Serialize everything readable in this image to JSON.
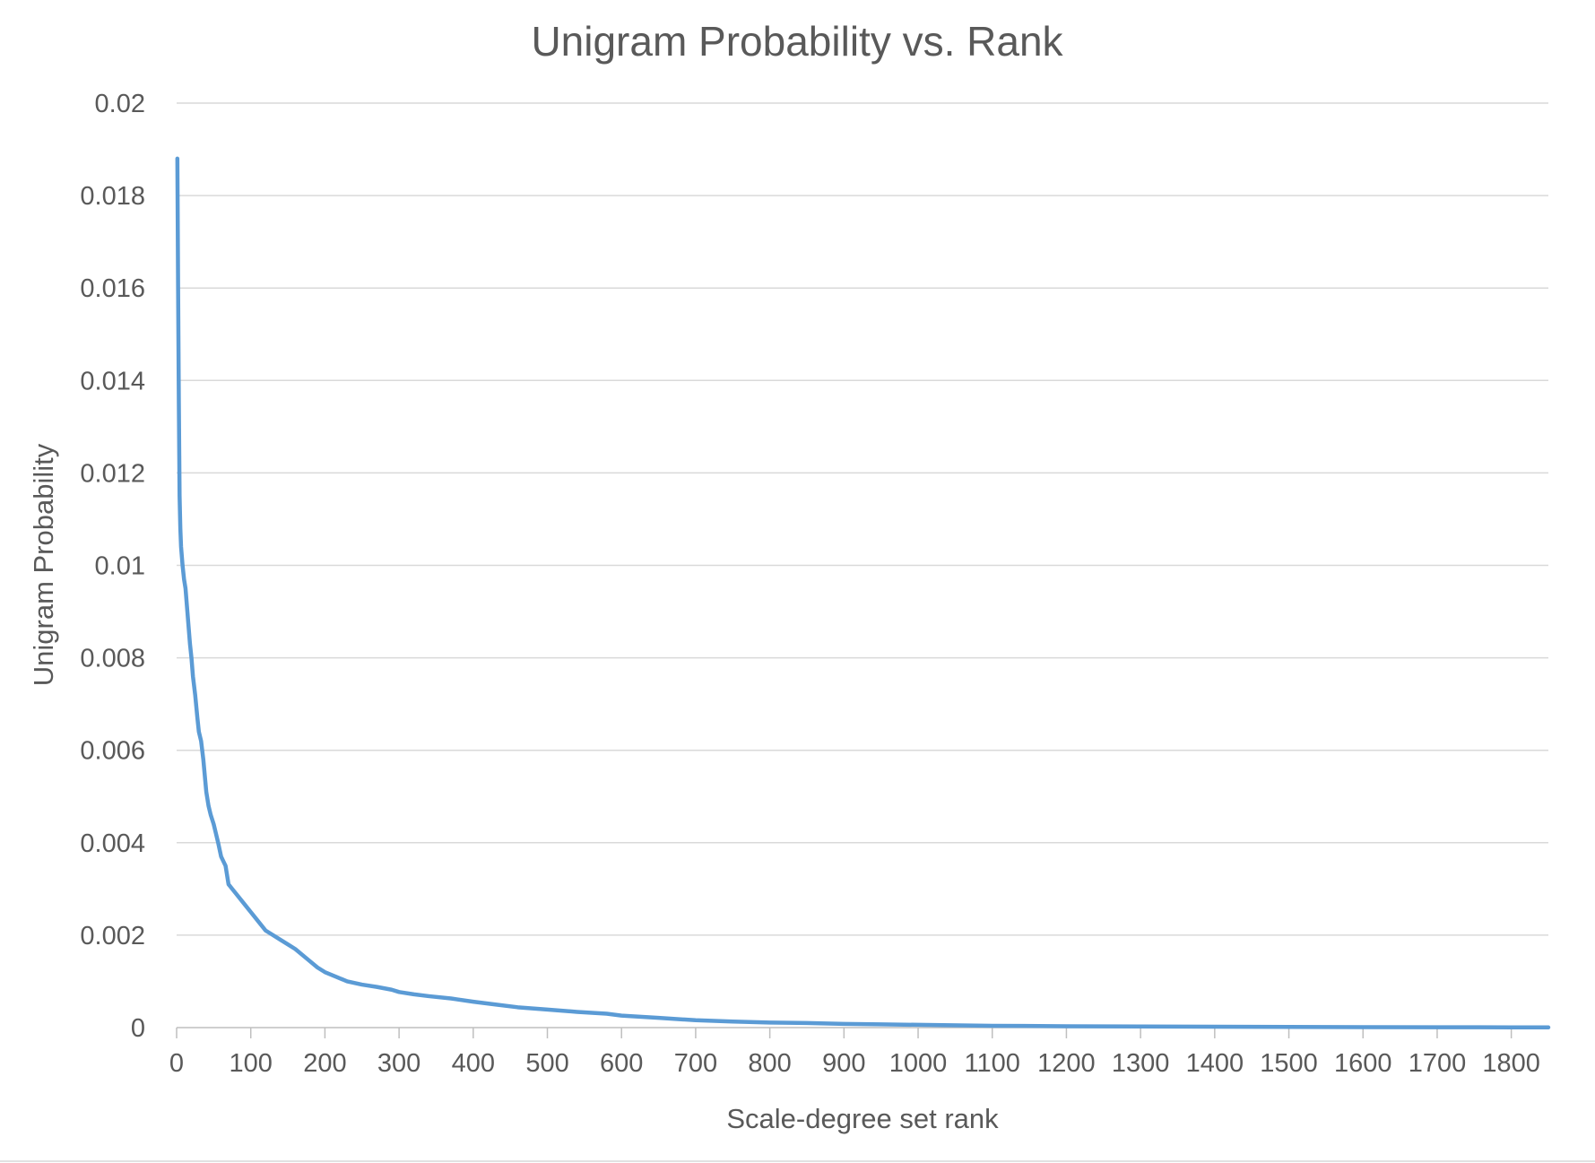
{
  "colors": {
    "series": "#5b9bd5",
    "text": "#595959",
    "grid": "#d9d9d9"
  },
  "chart_data": {
    "type": "line",
    "title": "Unigram Probability vs. Rank",
    "xlabel": "Scale-degree set rank",
    "ylabel": "Unigram Probability",
    "xlim": [
      0,
      1850
    ],
    "ylim": [
      0,
      0.02
    ],
    "x_ticks": [
      0,
      100,
      200,
      300,
      400,
      500,
      600,
      700,
      800,
      900,
      1000,
      1100,
      1200,
      1300,
      1400,
      1500,
      1600,
      1700,
      1800
    ],
    "y_ticks": [
      "0",
      "0.002",
      "0.004",
      "0.006",
      "0.008",
      "0.01",
      "0.012",
      "0.014",
      "0.016",
      "0.018",
      "0.02"
    ],
    "y_tick_values": [
      0,
      0.002,
      0.004,
      0.006,
      0.008,
      0.01,
      0.012,
      0.014,
      0.016,
      0.018,
      0.02
    ],
    "grid": true,
    "legend": "none",
    "series": [
      {
        "x": [
          1,
          2,
          3,
          4,
          5,
          6,
          8,
          10,
          12,
          14,
          16,
          18,
          20,
          22,
          25,
          28,
          30,
          33,
          36,
          40,
          43,
          46,
          50,
          53,
          56,
          60,
          63,
          66,
          70,
          75,
          80,
          90,
          100,
          110,
          120,
          130,
          140,
          150,
          160,
          175,
          190,
          200,
          215,
          230,
          250,
          270,
          290,
          300,
          320,
          340,
          370,
          400,
          430,
          460,
          500,
          540,
          580,
          600,
          650,
          700,
          750,
          800,
          850,
          900,
          950,
          1000,
          1100,
          1200,
          1300,
          1400,
          1500,
          1600,
          1700,
          1800,
          1850
        ],
        "y": [
          0.0188,
          0.016,
          0.0135,
          0.0115,
          0.0108,
          0.0104,
          0.01,
          0.0097,
          0.0095,
          0.0091,
          0.0087,
          0.0083,
          0.008,
          0.0076,
          0.0072,
          0.0067,
          0.0064,
          0.0062,
          0.0058,
          0.0051,
          0.0048,
          0.0046,
          0.0044,
          0.0042,
          0.004,
          0.0037,
          0.0036,
          0.0035,
          0.0031,
          0.003,
          0.0029,
          0.0027,
          0.0025,
          0.0023,
          0.0021,
          0.002,
          0.0019,
          0.0018,
          0.0017,
          0.0015,
          0.0013,
          0.0012,
          0.0011,
          0.001,
          0.00093,
          0.00088,
          0.00082,
          0.00077,
          0.00072,
          0.00068,
          0.00063,
          0.00056,
          0.0005,
          0.00044,
          0.00039,
          0.00034,
          0.0003,
          0.00026,
          0.00021,
          0.00016,
          0.00013,
          0.00011,
          0.0001,
          8e-05,
          7e-05,
          6e-05,
          4e-05,
          3e-05,
          2.5e-05,
          2e-05,
          1.5e-05,
          1e-05,
          8e-06,
          5e-06,
          4e-06
        ]
      }
    ]
  }
}
